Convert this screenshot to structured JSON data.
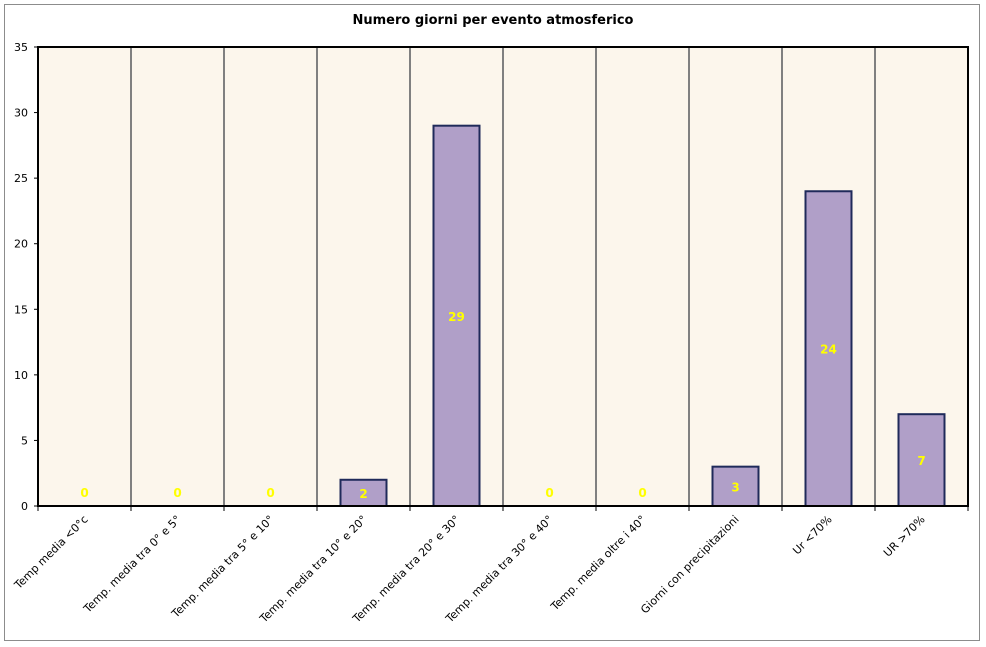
{
  "chart_data": {
    "type": "bar",
    "title": "Numero giorni per evento atmosferico",
    "xlabel": "",
    "ylabel": "",
    "categories": [
      "Temp media <0°c",
      "Temp. media tra 0° e 5°",
      "Temp. media tra 5° e 10°",
      "Temp. media tra 10° e 20°",
      "Temp. media tra 20° e 30°",
      "Temp. media tra 30° e 40°",
      "Temp. media oltre i 40°",
      "Giorni con precipitazioni",
      "Ur <70%",
      "UR >70%"
    ],
    "values": [
      0,
      0,
      0,
      2,
      29,
      0,
      0,
      3,
      24,
      7
    ],
    "ylim": [
      0,
      35
    ],
    "yticks": [
      0,
      5,
      10,
      15,
      20,
      25,
      30,
      35
    ],
    "grid": "vertical",
    "legend": "none",
    "colors": {
      "bar_fill": "#b09fc8",
      "bar_stroke": "#1f2a5a",
      "plot_bg": "#fcf6ec",
      "gridline": "#808080",
      "data_label": "#ffff00"
    }
  }
}
